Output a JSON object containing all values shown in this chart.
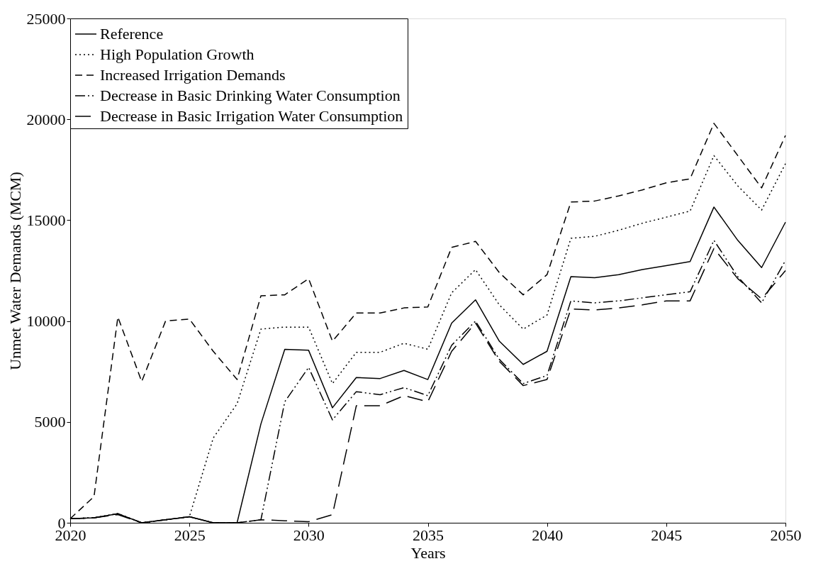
{
  "chart_data": {
    "type": "line",
    "xlabel": "Years",
    "ylabel": "Unmet Water Demands (MCM)",
    "x": [
      2020,
      2021,
      2022,
      2023,
      2024,
      2025,
      2026,
      2027,
      2028,
      2029,
      2030,
      2031,
      2032,
      2033,
      2034,
      2035,
      2036,
      2037,
      2038,
      2039,
      2040,
      2041,
      2042,
      2043,
      2044,
      2045,
      2046,
      2047,
      2048,
      2049,
      2050
    ],
    "xlim": [
      2020,
      2050
    ],
    "xticks": [
      2020,
      2025,
      2030,
      2035,
      2040,
      2045,
      2050
    ],
    "ylim": [
      0,
      25000
    ],
    "yticks": [
      0,
      5000,
      10000,
      15000,
      20000,
      25000
    ],
    "grid": false,
    "legend": "top left",
    "marker": "none",
    "series": [
      {
        "name": "Reference",
        "color": "#000000",
        "line_style": "solid",
        "values": [
          200,
          250,
          450,
          0,
          150,
          300,
          0,
          0,
          4900,
          8600,
          8550,
          5700,
          7200,
          7150,
          7550,
          7100,
          9900,
          11050,
          9000,
          7850,
          8500,
          12200,
          12150,
          12300,
          12550,
          12750,
          12950,
          15650,
          14000,
          12650,
          14900
        ]
      },
      {
        "name": "High Population Growth",
        "color": "#000000",
        "line_style": "dotted",
        "values": [
          200,
          250,
          450,
          0,
          150,
          300,
          4200,
          5900,
          9600,
          9700,
          9700,
          6900,
          8450,
          8450,
          8900,
          8600,
          11400,
          12550,
          10800,
          9600,
          10300,
          14100,
          14200,
          14500,
          14850,
          15150,
          15450,
          18200,
          16700,
          15500,
          17800
        ]
      },
      {
        "name": "Increased Irrigation Demands",
        "color": "#000000",
        "line_style": "dashed",
        "values": [
          200,
          1300,
          10200,
          7000,
          10000,
          10100,
          8500,
          7100,
          11250,
          11300,
          12100,
          9000,
          10400,
          10400,
          10650,
          10700,
          13650,
          13950,
          12400,
          11300,
          12300,
          15900,
          15950,
          16200,
          16500,
          16850,
          17050,
          19800,
          18200,
          16600,
          19200
        ]
      },
      {
        "name": "Decrease in Basic Drinking Water Consumption",
        "color": "#000000",
        "line_style": "dashdotdot",
        "values": [
          200,
          250,
          450,
          0,
          150,
          300,
          0,
          0,
          150,
          6000,
          7700,
          5100,
          6500,
          6350,
          6700,
          6300,
          8800,
          10000,
          8100,
          6900,
          7300,
          11000,
          10900,
          11000,
          11150,
          11300,
          11450,
          14000,
          12200,
          10900,
          13000
        ]
      },
      {
        "name": "Decrease in Basic Irrigation Water Consumption",
        "color": "#000000",
        "line_style": "longdash",
        "values": [
          200,
          250,
          400,
          0,
          150,
          300,
          0,
          0,
          150,
          100,
          50,
          400,
          5800,
          5800,
          6300,
          6000,
          8500,
          9900,
          8000,
          6800,
          7100,
          10600,
          10550,
          10650,
          10800,
          11000,
          11000,
          13600,
          12100,
          11100,
          12500
        ]
      }
    ]
  }
}
